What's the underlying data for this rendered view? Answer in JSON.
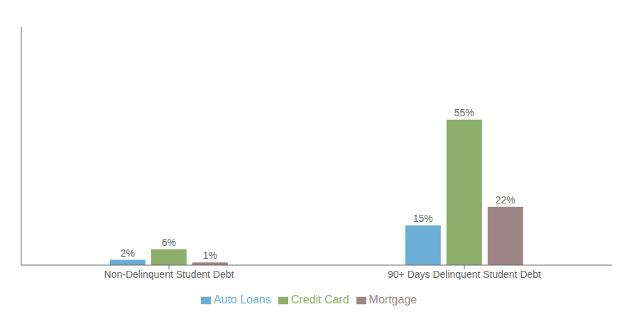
{
  "chart_data": {
    "type": "bar",
    "categories": [
      "Non-Delinquent Student Debt",
      "90+ Days Delinquent Student Debt"
    ],
    "series": [
      {
        "name": "Auto Loans",
        "color": "#6BAED6",
        "values": [
          2,
          15
        ],
        "value_labels": [
          "2%",
          "15%"
        ]
      },
      {
        "name": "Credit Card",
        "color": "#8DAE6B",
        "values": [
          6,
          55
        ],
        "value_labels": [
          "6%",
          "55%"
        ]
      },
      {
        "name": "Mortgage",
        "color": "#9E8585",
        "values": [
          1,
          22
        ],
        "value_labels": [
          "1%",
          "22%"
        ]
      }
    ],
    "ylim": [
      0,
      90
    ],
    "grid": false,
    "legend": "bottom",
    "data_labels": true,
    "tick_labels": "x"
  }
}
